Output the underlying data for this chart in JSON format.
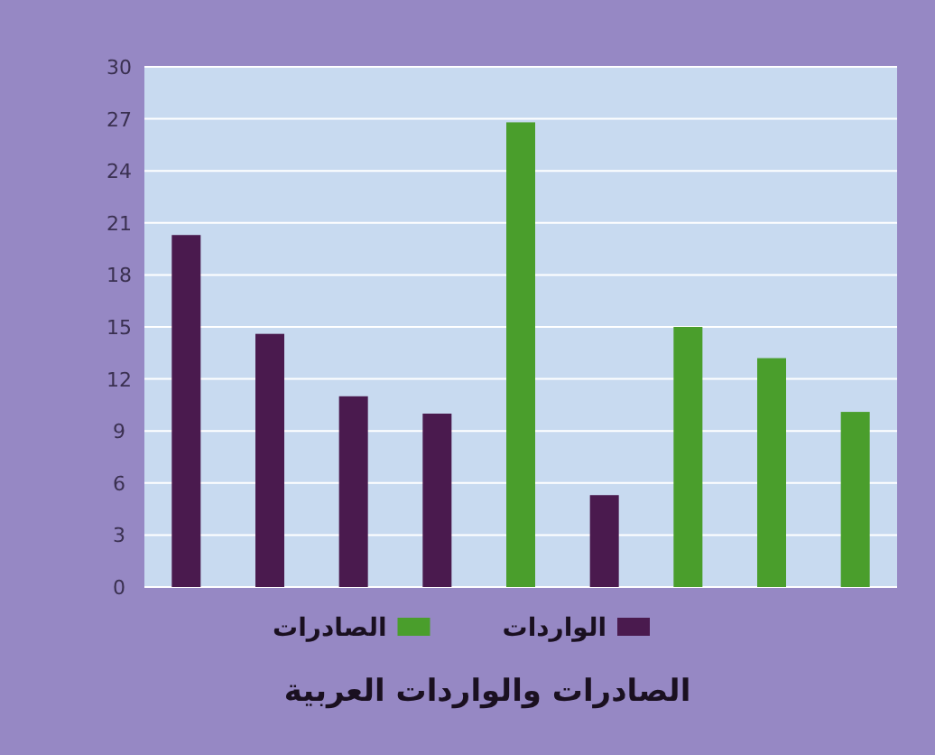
{
  "chart_data": {
    "type": "bar",
    "title": "الصادرات والواردات العربية",
    "categories": [
      null,
      null,
      null,
      null,
      null,
      null,
      null,
      null,
      null
    ],
    "series": [
      {
        "name": "الواردات",
        "color": "#4a1a4e",
        "values": [
          20.3,
          14.6,
          11,
          10,
          null,
          5.3,
          null,
          null,
          null
        ]
      },
      {
        "name": "الصادرات",
        "color": "#4a9e2c",
        "values": [
          null,
          null,
          null,
          null,
          26.8,
          null,
          15,
          13.2,
          10.1
        ]
      }
    ],
    "ylim": [
      0,
      30
    ],
    "yticks": [
      0,
      3,
      6,
      9,
      12,
      15,
      18,
      21,
      24,
      27,
      30
    ],
    "grid": "y",
    "legend": "bottom"
  }
}
